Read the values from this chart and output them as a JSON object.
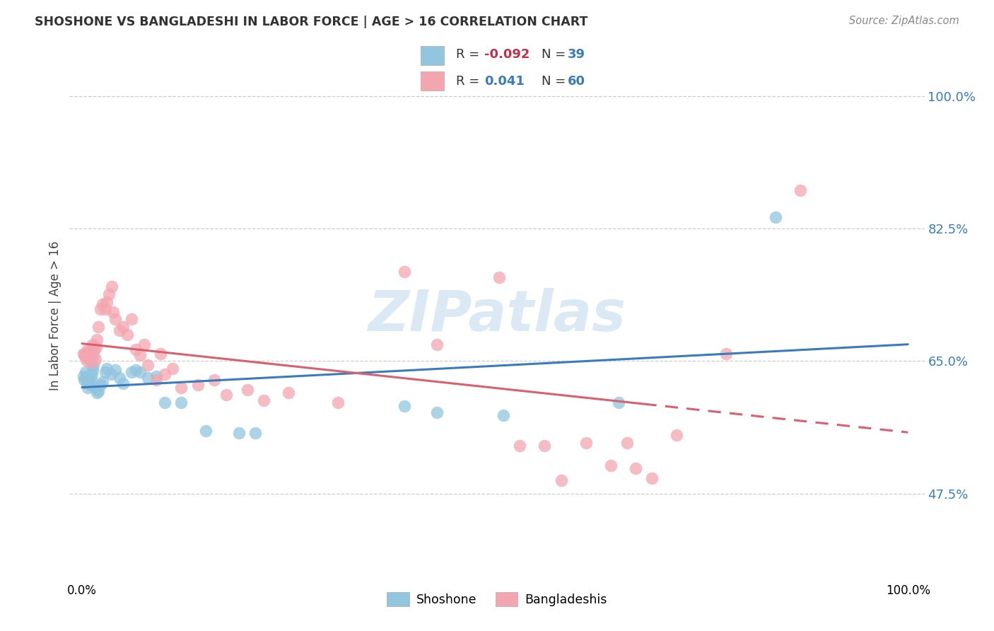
{
  "title": "SHOSHONE VS BANGLADESHI IN LABOR FORCE | AGE > 16 CORRELATION CHART",
  "source": "Source: ZipAtlas.com",
  "ylabel": "In Labor Force | Age > 16",
  "legend_blue_r": "-0.092",
  "legend_blue_n": "39",
  "legend_pink_r": "0.041",
  "legend_pink_n": "60",
  "blue_color": "#92c5de",
  "pink_color": "#f4a6b0",
  "blue_line_color": "#3a7bbf",
  "pink_line_color": "#d9606e",
  "watermark_color": "#b8d4ea",
  "blue_points_x": [
    0.002,
    0.003,
    0.004,
    0.005,
    0.006,
    0.007,
    0.008,
    0.009,
    0.01,
    0.011,
    0.012,
    0.013,
    0.014,
    0.016,
    0.018,
    0.02,
    0.022,
    0.025,
    0.028,
    0.03,
    0.035,
    0.04,
    0.045,
    0.05,
    0.06,
    0.065,
    0.07,
    0.08,
    0.09,
    0.1,
    0.12,
    0.15,
    0.19,
    0.21,
    0.39,
    0.43,
    0.51,
    0.65,
    0.84
  ],
  "blue_points_y": [
    0.63,
    0.625,
    0.635,
    0.63,
    0.62,
    0.615,
    0.628,
    0.622,
    0.618,
    0.625,
    0.632,
    0.638,
    0.645,
    0.615,
    0.608,
    0.61,
    0.618,
    0.622,
    0.635,
    0.64,
    0.632,
    0.638,
    0.628,
    0.62,
    0.635,
    0.638,
    0.635,
    0.628,
    0.63,
    0.595,
    0.595,
    0.558,
    0.555,
    0.555,
    0.59,
    0.582,
    0.578,
    0.595,
    0.84
  ],
  "pink_points_x": [
    0.002,
    0.003,
    0.004,
    0.005,
    0.006,
    0.007,
    0.008,
    0.009,
    0.01,
    0.011,
    0.012,
    0.013,
    0.014,
    0.015,
    0.016,
    0.017,
    0.018,
    0.02,
    0.022,
    0.025,
    0.028,
    0.03,
    0.033,
    0.036,
    0.038,
    0.04,
    0.045,
    0.05,
    0.055,
    0.06,
    0.065,
    0.07,
    0.075,
    0.08,
    0.09,
    0.095,
    0.1,
    0.11,
    0.12,
    0.14,
    0.16,
    0.175,
    0.2,
    0.22,
    0.25,
    0.31,
    0.39,
    0.43,
    0.505,
    0.53,
    0.56,
    0.58,
    0.61,
    0.64,
    0.66,
    0.67,
    0.69,
    0.72,
    0.78,
    0.87
  ],
  "pink_points_y": [
    0.66,
    0.658,
    0.655,
    0.66,
    0.65,
    0.665,
    0.658,
    0.662,
    0.648,
    0.655,
    0.668,
    0.672,
    0.658,
    0.665,
    0.652,
    0.668,
    0.678,
    0.695,
    0.718,
    0.725,
    0.718,
    0.728,
    0.738,
    0.748,
    0.715,
    0.705,
    0.69,
    0.695,
    0.685,
    0.705,
    0.665,
    0.658,
    0.672,
    0.645,
    0.625,
    0.66,
    0.632,
    0.64,
    0.615,
    0.618,
    0.625,
    0.605,
    0.612,
    0.598,
    0.608,
    0.595,
    0.768,
    0.672,
    0.76,
    0.538,
    0.538,
    0.492,
    0.542,
    0.512,
    0.542,
    0.508,
    0.495,
    0.552,
    0.66,
    0.875
  ],
  "xlim": [
    -0.015,
    1.02
  ],
  "ylim": [
    0.36,
    1.06
  ],
  "yticks": [
    0.475,
    0.65,
    0.825,
    1.0
  ],
  "ytick_labels": [
    "47.5%",
    "65.0%",
    "82.5%",
    "100.0%"
  ]
}
